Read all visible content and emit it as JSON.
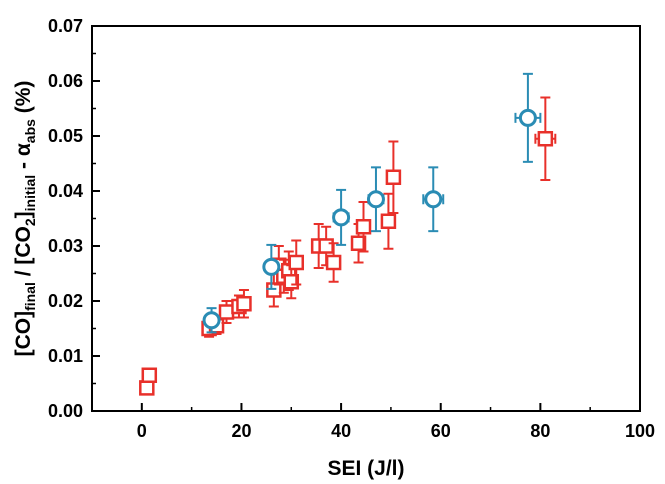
{
  "chart_data": {
    "type": "scatter",
    "xlabel": "SEI (J/l)",
    "ylabel": {
      "parts": [
        {
          "t": "[CO]",
          "s": "normal"
        },
        {
          "t": "final",
          "s": "sub"
        },
        {
          "t": " / [CO",
          "s": "normal"
        },
        {
          "t": "2",
          "s": "sub"
        },
        {
          "t": "]",
          "s": "normal"
        },
        {
          "t": "initial",
          "s": "sub"
        },
        {
          "t": " - ",
          "s": "normal"
        },
        {
          "t": "α",
          "s": "normal"
        },
        {
          "t": "abs",
          "s": "sub"
        },
        {
          "t": " (%)",
          "s": "normal"
        }
      ]
    },
    "xlim": [
      -10,
      100
    ],
    "ylim": [
      0,
      0.07
    ],
    "xticks": [
      0,
      20,
      40,
      60,
      80,
      100
    ],
    "yticks": [
      0.0,
      0.01,
      0.02,
      0.03,
      0.04,
      0.05,
      0.06,
      0.07
    ],
    "xtick_labels": [
      "0",
      "20",
      "40",
      "60",
      "80",
      "100"
    ],
    "ytick_labels": [
      "0.00",
      "0.01",
      "0.02",
      "0.03",
      "0.04",
      "0.05",
      "0.06",
      "0.07"
    ],
    "grid": false,
    "series": [
      {
        "marker": "square",
        "color": "#e8302a",
        "points": [
          {
            "x": 1.0,
            "y": 0.0042,
            "xerr": 0.5,
            "yerr": 0.0008
          },
          {
            "x": 1.5,
            "y": 0.0065,
            "xerr": 0.5,
            "yerr": 0.001
          },
          {
            "x": 13.5,
            "y": 0.015,
            "xerr": 0.8,
            "yerr": 0.0015
          },
          {
            "x": 15.0,
            "y": 0.0155,
            "xerr": 0.8,
            "yerr": 0.0015
          },
          {
            "x": 17.0,
            "y": 0.018,
            "xerr": 0.8,
            "yerr": 0.002
          },
          {
            "x": 19.5,
            "y": 0.019,
            "xerr": 0.8,
            "yerr": 0.002
          },
          {
            "x": 20.5,
            "y": 0.0195,
            "xerr": 0.8,
            "yerr": 0.0025
          },
          {
            "x": 26.5,
            "y": 0.022,
            "xerr": 0.8,
            "yerr": 0.003
          },
          {
            "x": 27.5,
            "y": 0.0265,
            "xerr": 0.8,
            "yerr": 0.0035
          },
          {
            "x": 28.5,
            "y": 0.0245,
            "xerr": 0.8,
            "yerr": 0.003
          },
          {
            "x": 29.5,
            "y": 0.0255,
            "xerr": 0.8,
            "yerr": 0.0035
          },
          {
            "x": 30.0,
            "y": 0.0235,
            "xerr": 0.8,
            "yerr": 0.003
          },
          {
            "x": 31.0,
            "y": 0.027,
            "xerr": 0.8,
            "yerr": 0.004
          },
          {
            "x": 35.5,
            "y": 0.03,
            "xerr": 1.0,
            "yerr": 0.004
          },
          {
            "x": 37.0,
            "y": 0.03,
            "xerr": 1.0,
            "yerr": 0.0035
          },
          {
            "x": 38.5,
            "y": 0.027,
            "xerr": 1.0,
            "yerr": 0.0035
          },
          {
            "x": 43.5,
            "y": 0.0305,
            "xerr": 1.0,
            "yerr": 0.0035
          },
          {
            "x": 44.5,
            "y": 0.0335,
            "xerr": 1.0,
            "yerr": 0.0045
          },
          {
            "x": 49.5,
            "y": 0.0345,
            "xerr": 1.0,
            "yerr": 0.005
          },
          {
            "x": 50.5,
            "y": 0.0425,
            "xerr": 1.0,
            "yerr": 0.0065
          },
          {
            "x": 81.0,
            "y": 0.0495,
            "xerr": 2.0,
            "yerr": 0.0075
          }
        ]
      },
      {
        "marker": "circle",
        "color": "#2a8cb4",
        "points": [
          {
            "x": 14.0,
            "y": 0.0165,
            "xerr": 1.0,
            "yerr": 0.0022
          },
          {
            "x": 26.0,
            "y": 0.0262,
            "xerr": 1.2,
            "yerr": 0.004
          },
          {
            "x": 40.0,
            "y": 0.0352,
            "xerr": 1.5,
            "yerr": 0.005
          },
          {
            "x": 47.0,
            "y": 0.0385,
            "xerr": 1.5,
            "yerr": 0.0058
          },
          {
            "x": 58.5,
            "y": 0.0385,
            "xerr": 2.0,
            "yerr": 0.0058
          },
          {
            "x": 77.5,
            "y": 0.0533,
            "xerr": 2.5,
            "yerr": 0.008
          }
        ]
      }
    ]
  }
}
